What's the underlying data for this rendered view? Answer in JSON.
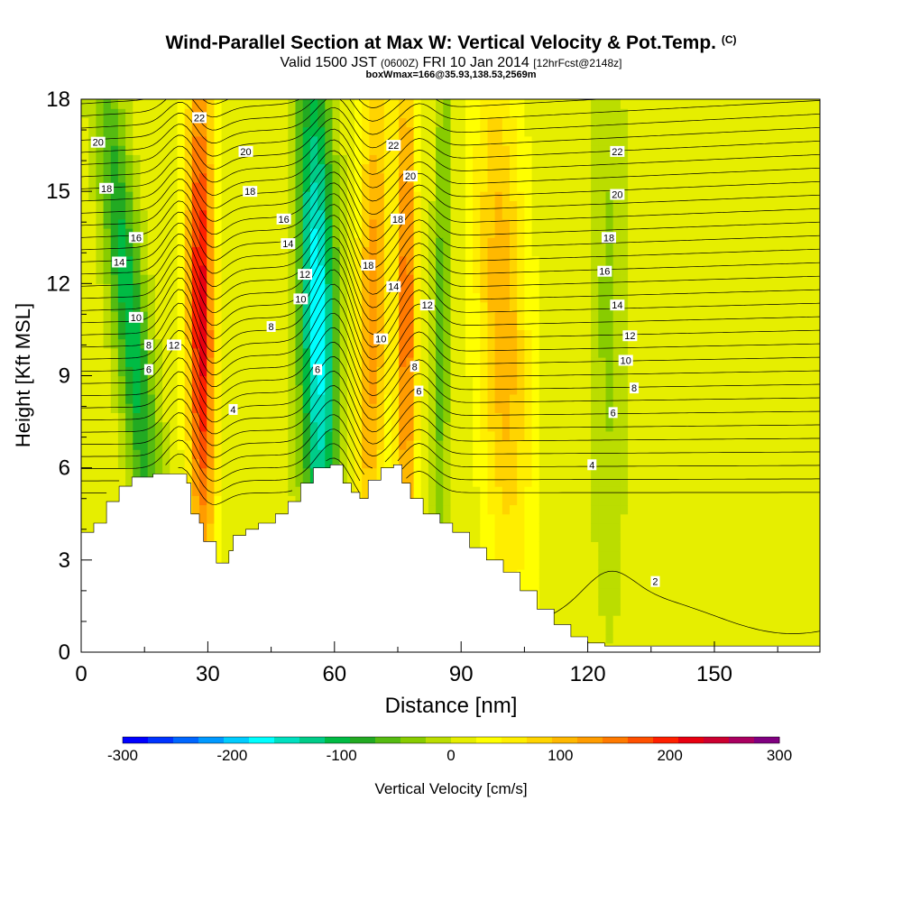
{
  "title": {
    "main": "Wind-Parallel Section at Max W: Vertical Velocity & Pot.Temp.",
    "copyright": "(C)",
    "valid_prefix": "Valid 1500 JST",
    "valid_utc": "(0600Z)",
    "valid_date": "FRI 10 Jan 2014",
    "forecast": "[12hrFcst@2148z]",
    "box_info": "boxWmax=166@35.93,138.53,2569m"
  },
  "chart_data": {
    "type": "heatmap",
    "xlabel": "Distance [nm]",
    "ylabel": "Height [Kft MSL]",
    "xlim": [
      0,
      175
    ],
    "ylim": [
      0,
      18
    ],
    "x_ticks": [
      0,
      30,
      60,
      90,
      120,
      150
    ],
    "y_ticks": [
      0,
      3,
      6,
      9,
      12,
      15,
      18
    ],
    "colorbar": {
      "label": "Vertical Velocity [cm/s]",
      "range": [
        -300,
        300
      ],
      "tick_values": [
        -300,
        -200,
        -100,
        0,
        100,
        200,
        300
      ],
      "tick_labels": [
        "-300",
        "-200",
        "-100",
        "0",
        "100",
        "200",
        "300"
      ],
      "colors": [
        "#0000ff",
        "#0033ff",
        "#0066ff",
        "#0099ff",
        "#00ccff",
        "#00ffff",
        "#00e0c0",
        "#00cc88",
        "#00bb44",
        "#22aa22",
        "#55bb11",
        "#88cc00",
        "#bbdd00",
        "#e6ee00",
        "#ffff00",
        "#ffee00",
        "#ffd400",
        "#ffb800",
        "#ff9c00",
        "#ff7a00",
        "#ff5000",
        "#ff2000",
        "#e80010",
        "#cc0030",
        "#aa0060",
        "#800080"
      ]
    },
    "terrain_kft": [
      [
        0,
        3.9
      ],
      [
        3,
        4.2
      ],
      [
        6,
        4.9
      ],
      [
        9,
        5.4
      ],
      [
        12,
        5.7
      ],
      [
        17,
        5.8
      ],
      [
        22,
        5.8
      ],
      [
        25,
        5.5
      ],
      [
        26,
        4.5
      ],
      [
        28,
        4.2
      ],
      [
        29,
        3.6
      ],
      [
        32,
        2.9
      ],
      [
        35,
        3.3
      ],
      [
        36,
        3.8
      ],
      [
        39,
        4.0
      ],
      [
        42,
        4.2
      ],
      [
        46,
        4.5
      ],
      [
        49,
        4.9
      ],
      [
        52,
        5.5
      ],
      [
        55,
        6.0
      ],
      [
        59,
        6.1
      ],
      [
        62,
        5.5
      ],
      [
        64,
        5.2
      ],
      [
        66,
        5.0
      ],
      [
        68,
        5.6
      ],
      [
        71,
        6.0
      ],
      [
        74,
        6.1
      ],
      [
        76,
        5.5
      ],
      [
        78,
        5.0
      ],
      [
        81,
        4.5
      ],
      [
        85,
        4.2
      ],
      [
        88,
        3.9
      ],
      [
        92,
        3.4
      ],
      [
        96,
        3.0
      ],
      [
        100,
        2.6
      ],
      [
        104,
        2.0
      ],
      [
        108,
        1.4
      ],
      [
        112,
        0.9
      ],
      [
        116,
        0.5
      ],
      [
        120,
        0.3
      ],
      [
        124,
        0.2
      ],
      [
        175,
        0.2
      ]
    ],
    "velocity_features": [
      {
        "type": "downdraft",
        "x0": 15,
        "x1": 25,
        "xtop": 6,
        "value": -120
      },
      {
        "type": "updraft",
        "x0": 25,
        "x1": 33,
        "xtop": 28,
        "value": 210
      },
      {
        "type": "downdraft",
        "x0": 52,
        "x1": 63,
        "xtop": 55,
        "value": -190
      },
      {
        "type": "updraft",
        "x0": 63,
        "x1": 72,
        "xtop": 70,
        "value": 120
      },
      {
        "type": "updraft",
        "x0": 74,
        "x1": 80,
        "xtop": 77,
        "value": 150
      },
      {
        "type": "downdraft",
        "x0": 82,
        "x1": 87,
        "xtop": 86,
        "value": -70
      },
      {
        "type": "updraft",
        "x0": 95,
        "x1": 110,
        "xtop": 98,
        "value": 100
      },
      {
        "type": "downdraft",
        "x0": 120,
        "x1": 130,
        "xtop": 125,
        "value": -40
      }
    ],
    "pot_temp_labels": [
      {
        "text": "20",
        "x": 4,
        "y": 16.6
      },
      {
        "text": "18",
        "x": 6,
        "y": 15.1
      },
      {
        "text": "16",
        "x": 13,
        "y": 13.5
      },
      {
        "text": "14",
        "x": 9,
        "y": 12.7
      },
      {
        "text": "10",
        "x": 13,
        "y": 10.9
      },
      {
        "text": "8",
        "x": 16,
        "y": 10.0
      },
      {
        "text": "6",
        "x": 16,
        "y": 9.2
      },
      {
        "text": "12",
        "x": 22,
        "y": 10.0
      },
      {
        "text": "22",
        "x": 28,
        "y": 17.4
      },
      {
        "text": "20",
        "x": 39,
        "y": 16.3
      },
      {
        "text": "18",
        "x": 40,
        "y": 15.0
      },
      {
        "text": "16",
        "x": 48,
        "y": 14.1
      },
      {
        "text": "14",
        "x": 49,
        "y": 13.3
      },
      {
        "text": "12",
        "x": 53,
        "y": 12.3
      },
      {
        "text": "10",
        "x": 52,
        "y": 11.5
      },
      {
        "text": "8",
        "x": 45,
        "y": 10.6
      },
      {
        "text": "4",
        "x": 36,
        "y": 7.9
      },
      {
        "text": "6",
        "x": 56,
        "y": 9.2
      },
      {
        "text": "22",
        "x": 74,
        "y": 16.5
      },
      {
        "text": "20",
        "x": 78,
        "y": 15.5
      },
      {
        "text": "18",
        "x": 75,
        "y": 14.1
      },
      {
        "text": "18",
        "x": 68,
        "y": 12.6
      },
      {
        "text": "14",
        "x": 74,
        "y": 11.9
      },
      {
        "text": "12",
        "x": 82,
        "y": 11.3
      },
      {
        "text": "10",
        "x": 71,
        "y": 10.2
      },
      {
        "text": "8",
        "x": 79,
        "y": 9.3
      },
      {
        "text": "6",
        "x": 80,
        "y": 8.5
      },
      {
        "text": "22",
        "x": 127,
        "y": 16.3
      },
      {
        "text": "20",
        "x": 127,
        "y": 14.9
      },
      {
        "text": "18",
        "x": 125,
        "y": 13.5
      },
      {
        "text": "16",
        "x": 124,
        "y": 12.4
      },
      {
        "text": "14",
        "x": 127,
        "y": 11.3
      },
      {
        "text": "12",
        "x": 130,
        "y": 10.3
      },
      {
        "text": "10",
        "x": 129,
        "y": 9.5
      },
      {
        "text": "8",
        "x": 131,
        "y": 8.6
      },
      {
        "text": "6",
        "x": 126,
        "y": 7.8
      },
      {
        "text": "4",
        "x": 121,
        "y": 6.1
      },
      {
        "text": "2",
        "x": 136,
        "y": 2.3
      }
    ]
  }
}
